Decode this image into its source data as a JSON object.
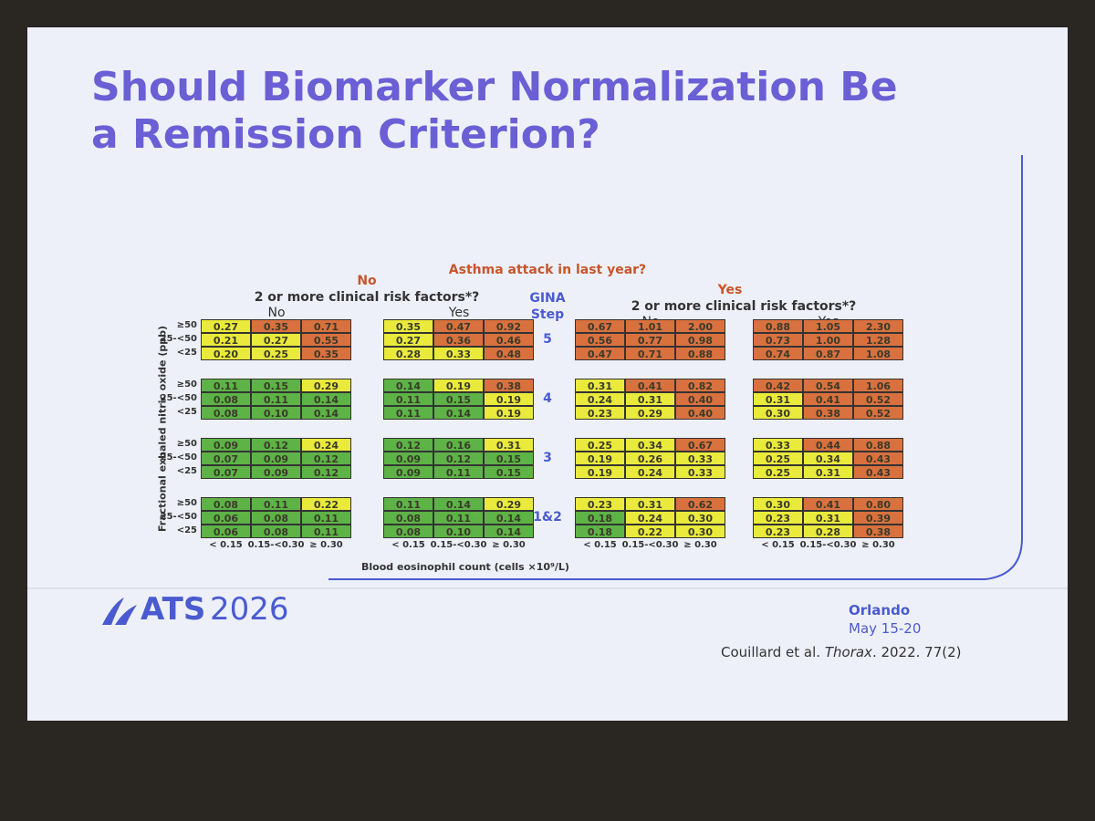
{
  "title": "Should Biomarker Normalization Be a Remission Criterion?",
  "figure": {
    "header": "Asthma attack in last year?",
    "groups": [
      {
        "label": "No",
        "subheader": "2 or more clinical risk factors*?",
        "columns": [
          "No",
          "Yes"
        ]
      },
      {
        "label": "Yes",
        "subheader": "2 or more clinical risk factors*?",
        "columns": [
          "No",
          "Yes"
        ]
      }
    ],
    "step_header": "GINA Step",
    "y_label": "Fractional exhaled nitric oxide (ppb)",
    "x_label": "Blood eosinophil count (cells ×10⁹/L)",
    "row_labels": [
      "≥50",
      "25-<50",
      "<25"
    ],
    "col_labels": [
      "< 0.15",
      "0.15-<0.30",
      "≥ 0.30"
    ],
    "steps": [
      {
        "label": "5",
        "panels": [
          {
            "values": [
              [
                "0.27",
                "0.35",
                "0.71"
              ],
              [
                "0.21",
                "0.27",
                "0.55"
              ],
              [
                "0.20",
                "0.25",
                "0.35"
              ]
            ],
            "colors": [
              [
                "#eaea3c",
                "#d9713f",
                "#d9713f"
              ],
              [
                "#eaea3c",
                "#eaea3c",
                "#d9713f"
              ],
              [
                "#eaea3c",
                "#eaea3c",
                "#d9713f"
              ]
            ]
          },
          {
            "values": [
              [
                "0.35",
                "0.47",
                "0.92"
              ],
              [
                "0.27",
                "0.36",
                "0.46"
              ],
              [
                "0.28",
                "0.33",
                "0.48"
              ]
            ],
            "colors": [
              [
                "#eaea3c",
                "#d9713f",
                "#d9713f"
              ],
              [
                "#eaea3c",
                "#d9713f",
                "#d9713f"
              ],
              [
                "#eaea3c",
                "#eaea3c",
                "#d9713f"
              ]
            ]
          },
          {
            "values": [
              [
                "0.67",
                "1.01",
                "2.00"
              ],
              [
                "0.56",
                "0.77",
                "0.98"
              ],
              [
                "0.47",
                "0.71",
                "0.88"
              ]
            ],
            "colors": [
              [
                "#d9713f",
                "#d9713f",
                "#d9713f"
              ],
              [
                "#d9713f",
                "#d9713f",
                "#d9713f"
              ],
              [
                "#d9713f",
                "#d9713f",
                "#d9713f"
              ]
            ]
          },
          {
            "values": [
              [
                "0.88",
                "1.05",
                "2.30"
              ],
              [
                "0.73",
                "1.00",
                "1.28"
              ],
              [
                "0.74",
                "0.87",
                "1.08"
              ]
            ],
            "colors": [
              [
                "#d9713f",
                "#d9713f",
                "#d9713f"
              ],
              [
                "#d9713f",
                "#d9713f",
                "#d9713f"
              ],
              [
                "#d9713f",
                "#d9713f",
                "#d9713f"
              ]
            ]
          }
        ]
      },
      {
        "label": "4",
        "panels": [
          {
            "values": [
              [
                "0.11",
                "0.15",
                "0.29"
              ],
              [
                "0.08",
                "0.11",
                "0.14"
              ],
              [
                "0.08",
                "0.10",
                "0.14"
              ]
            ],
            "colors": [
              [
                "#5db346",
                "#5db346",
                "#eaea3c"
              ],
              [
                "#5db346",
                "#5db346",
                "#5db346"
              ],
              [
                "#5db346",
                "#5db346",
                "#5db346"
              ]
            ]
          },
          {
            "values": [
              [
                "0.14",
                "0.19",
                "0.38"
              ],
              [
                "0.11",
                "0.15",
                "0.19"
              ],
              [
                "0.11",
                "0.14",
                "0.19"
              ]
            ],
            "colors": [
              [
                "#5db346",
                "#eaea3c",
                "#d9713f"
              ],
              [
                "#5db346",
                "#5db346",
                "#eaea3c"
              ],
              [
                "#5db346",
                "#5db346",
                "#eaea3c"
              ]
            ]
          },
          {
            "values": [
              [
                "0.31",
                "0.41",
                "0.82"
              ],
              [
                "0.24",
                "0.31",
                "0.40"
              ],
              [
                "0.23",
                "0.29",
                "0.40"
              ]
            ],
            "colors": [
              [
                "#eaea3c",
                "#d9713f",
                "#d9713f"
              ],
              [
                "#eaea3c",
                "#eaea3c",
                "#d9713f"
              ],
              [
                "#eaea3c",
                "#eaea3c",
                "#d9713f"
              ]
            ]
          },
          {
            "values": [
              [
                "0.42",
                "0.54",
                "1.06"
              ],
              [
                "0.31",
                "0.41",
                "0.52"
              ],
              [
                "0.30",
                "0.38",
                "0.52"
              ]
            ],
            "colors": [
              [
                "#d9713f",
                "#d9713f",
                "#d9713f"
              ],
              [
                "#eaea3c",
                "#d9713f",
                "#d9713f"
              ],
              [
                "#eaea3c",
                "#d9713f",
                "#d9713f"
              ]
            ]
          }
        ]
      },
      {
        "label": "3",
        "panels": [
          {
            "values": [
              [
                "0.09",
                "0.12",
                "0.24"
              ],
              [
                "0.07",
                "0.09",
                "0.12"
              ],
              [
                "0.07",
                "0.09",
                "0.12"
              ]
            ],
            "colors": [
              [
                "#5db346",
                "#5db346",
                "#eaea3c"
              ],
              [
                "#5db346",
                "#5db346",
                "#5db346"
              ],
              [
                "#5db346",
                "#5db346",
                "#5db346"
              ]
            ]
          },
          {
            "values": [
              [
                "0.12",
                "0.16",
                "0.31"
              ],
              [
                "0.09",
                "0.12",
                "0.15"
              ],
              [
                "0.09",
                "0.11",
                "0.15"
              ]
            ],
            "colors": [
              [
                "#5db346",
                "#5db346",
                "#eaea3c"
              ],
              [
                "#5db346",
                "#5db346",
                "#5db346"
              ],
              [
                "#5db346",
                "#5db346",
                "#5db346"
              ]
            ]
          },
          {
            "values": [
              [
                "0.25",
                "0.34",
                "0.67"
              ],
              [
                "0.19",
                "0.26",
                "0.33"
              ],
              [
                "0.19",
                "0.24",
                "0.33"
              ]
            ],
            "colors": [
              [
                "#eaea3c",
                "#eaea3c",
                "#d9713f"
              ],
              [
                "#eaea3c",
                "#eaea3c",
                "#eaea3c"
              ],
              [
                "#eaea3c",
                "#eaea3c",
                "#eaea3c"
              ]
            ]
          },
          {
            "values": [
              [
                "0.33",
                "0.44",
                "0.88"
              ],
              [
                "0.25",
                "0.34",
                "0.43"
              ],
              [
                "0.25",
                "0.31",
                "0.43"
              ]
            ],
            "colors": [
              [
                "#eaea3c",
                "#d9713f",
                "#d9713f"
              ],
              [
                "#eaea3c",
                "#eaea3c",
                "#d9713f"
              ],
              [
                "#eaea3c",
                "#eaea3c",
                "#d9713f"
              ]
            ]
          }
        ]
      },
      {
        "label": "1&2",
        "panels": [
          {
            "values": [
              [
                "0.08",
                "0.11",
                "0.22"
              ],
              [
                "0.06",
                "0.08",
                "0.11"
              ],
              [
                "0.06",
                "0.08",
                "0.11"
              ]
            ],
            "colors": [
              [
                "#5db346",
                "#5db346",
                "#eaea3c"
              ],
              [
                "#5db346",
                "#5db346",
                "#5db346"
              ],
              [
                "#5db346",
                "#5db346",
                "#5db346"
              ]
            ]
          },
          {
            "values": [
              [
                "0.11",
                "0.14",
                "0.29"
              ],
              [
                "0.08",
                "0.11",
                "0.14"
              ],
              [
                "0.08",
                "0.10",
                "0.14"
              ]
            ],
            "colors": [
              [
                "#5db346",
                "#5db346",
                "#eaea3c"
              ],
              [
                "#5db346",
                "#5db346",
                "#5db346"
              ],
              [
                "#5db346",
                "#5db346",
                "#5db346"
              ]
            ]
          },
          {
            "values": [
              [
                "0.23",
                "0.31",
                "0.62"
              ],
              [
                "0.18",
                "0.24",
                "0.30"
              ],
              [
                "0.18",
                "0.22",
                "0.30"
              ]
            ],
            "colors": [
              [
                "#eaea3c",
                "#eaea3c",
                "#d9713f"
              ],
              [
                "#5db346",
                "#eaea3c",
                "#eaea3c"
              ],
              [
                "#5db346",
                "#eaea3c",
                "#eaea3c"
              ]
            ]
          },
          {
            "values": [
              [
                "0.30",
                "0.41",
                "0.80"
              ],
              [
                "0.23",
                "0.31",
                "0.39"
              ],
              [
                "0.23",
                "0.28",
                "0.38"
              ]
            ],
            "colors": [
              [
                "#eaea3c",
                "#d9713f",
                "#d9713f"
              ],
              [
                "#eaea3c",
                "#eaea3c",
                "#d9713f"
              ],
              [
                "#eaea3c",
                "#eaea3c",
                "#d9713f"
              ]
            ]
          }
        ]
      }
    ]
  },
  "footer": {
    "logo": "ATS",
    "year": "2026",
    "city": "Orlando",
    "dates": "May 15-20",
    "citation_authors": "Couillard et al.",
    "citation_journal": "Thorax",
    "citation_rest": ". 2022. 77(2)"
  }
}
